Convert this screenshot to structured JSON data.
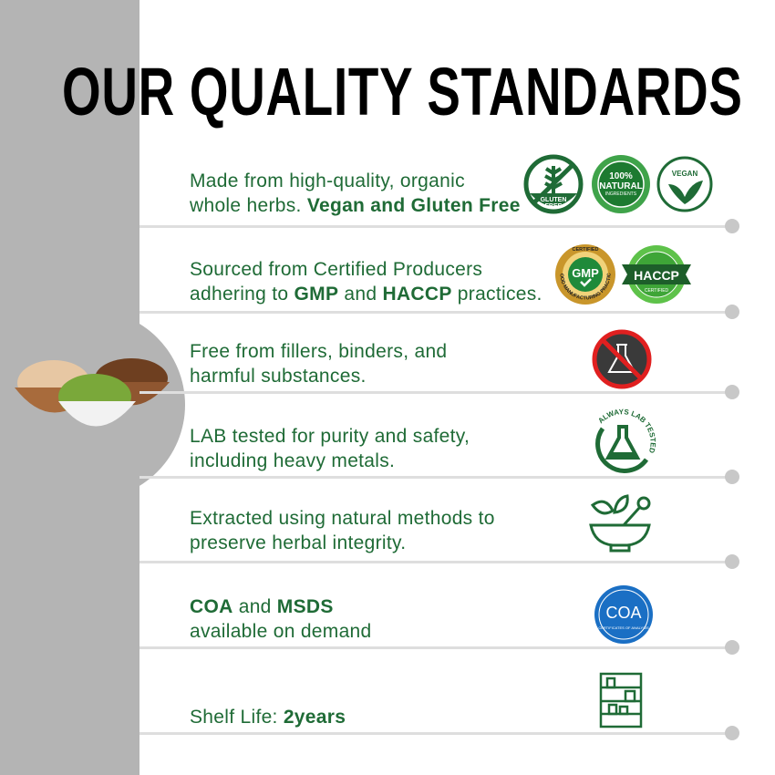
{
  "title": "OUR QUALITY STANDARDS",
  "accent": "#1f6b36",
  "rows": [
    {
      "l1": "Made from high-quality, organic",
      "l2a": "whole herbs. ",
      "l2b": "Vegan and Gluten Free",
      "badges": [
        "GLUTEN",
        "FREE",
        "100%",
        "NATURAL",
        "INGREDIENTS",
        "VEGAN"
      ]
    },
    {
      "l1": "Sourced from Certified Producers",
      "l2a": "adhering to ",
      "l2b": "GMP",
      "l2c": " and ",
      "l2d": "HACCP",
      "l2e": " practices.",
      "badges": [
        "CERTIFIED",
        "GMP",
        "GOOD MANUFACTURING PRACTICE",
        "HACCP",
        "CERTIFIED"
      ]
    },
    {
      "l1": "Free from fillers, binders, and",
      "l2": "harmful substances.",
      "icon": "no-chemicals-icon"
    },
    {
      "l1": "LAB tested for purity and safety,",
      "l2": "including heavy metals.",
      "badge": "ALWAYS LAB TESTED"
    },
    {
      "l1": "Extracted using natural methods to",
      "l2": "preserve herbal integrity.",
      "icon": "mortar-pestle-leaf-icon"
    },
    {
      "l1a": "COA",
      "l1b": " and ",
      "l1c": "MSDS",
      "l2": "available on demand",
      "badges": [
        "COA",
        "CERTIFICATES OF ANALYSIS"
      ]
    },
    {
      "l1a": "Shelf Life: ",
      "l1b": "2years",
      "icon": "shelf-icon"
    }
  ]
}
